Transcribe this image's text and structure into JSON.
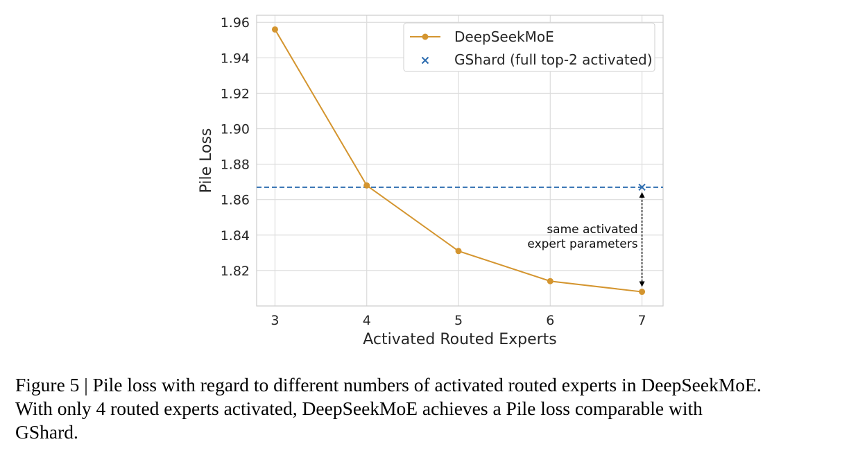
{
  "chart_data": {
    "type": "line",
    "xlabel": "Activated Routed Experts",
    "ylabel": "Pile Loss",
    "xlim": [
      2.8,
      7.23
    ],
    "ylim": [
      1.8,
      1.964
    ],
    "xticks": [
      3,
      4,
      5,
      6,
      7
    ],
    "yticks": [
      1.82,
      1.84,
      1.86,
      1.88,
      1.9,
      1.92,
      1.94,
      1.96
    ],
    "ytick_labels": [
      "1.82",
      "1.84",
      "1.86",
      "1.88",
      "1.90",
      "1.92",
      "1.94",
      "1.96"
    ],
    "grid": true,
    "legend_position": "top-right",
    "series": [
      {
        "name": "DeepSeekMoE",
        "kind": "line-marker",
        "color": "#D4952F",
        "x": [
          3,
          4,
          5,
          6,
          7
        ],
        "y": [
          1.956,
          1.868,
          1.831,
          1.814,
          1.808
        ]
      },
      {
        "name": "GShard (full top-2 activated)",
        "kind": "x-marker-hline",
        "color": "#2F6EB0",
        "x": [
          7
        ],
        "y": [
          1.867
        ]
      }
    ],
    "annotation": {
      "lines": [
        "same activated",
        "expert parameters"
      ],
      "x": 7,
      "y_from": 1.808,
      "y_to": 1.867
    }
  },
  "caption": {
    "lines": [
      "Figure 5 | Pile loss with regard to different numbers of activated routed experts in DeepSeekMoE.",
      "With only 4 routed experts activated, DeepSeekMoE achieves a Pile loss comparable with",
      "GShard."
    ]
  }
}
